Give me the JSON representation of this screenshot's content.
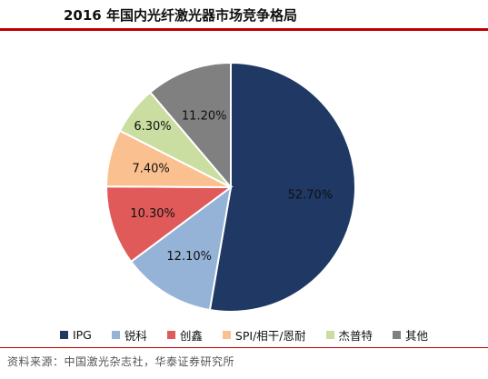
{
  "title": "2016 年国内光纤激光器市场竞争格局",
  "source": "资料来源：中国激光杂志社，华泰证券研究所",
  "chart_data": {
    "type": "pie",
    "title": "2016 年国内光纤激光器市场竞争格局",
    "slices": [
      {
        "name": "IPG",
        "value": 52.7,
        "label": "52.70%",
        "color": "#1f3864"
      },
      {
        "name": "锐科",
        "value": 12.1,
        "label": "12.10%",
        "color": "#95b3d7"
      },
      {
        "name": "创鑫",
        "value": 10.3,
        "label": "10.30%",
        "color": "#e05a5a"
      },
      {
        "name": "SPI/相干/恩耐",
        "value": 7.4,
        "label": "7.40%",
        "color": "#fbc08f"
      },
      {
        "name": "杰普特",
        "value": 6.3,
        "label": "6.30%",
        "color": "#c9dea0"
      },
      {
        "name": "其他",
        "value": 11.2,
        "label": "11.20%",
        "color": "#808080"
      }
    ],
    "legend_position": "bottom"
  }
}
